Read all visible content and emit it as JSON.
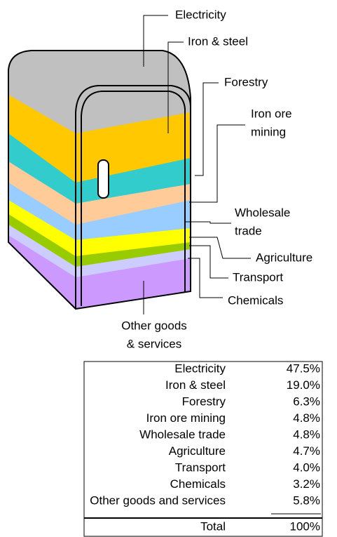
{
  "diagram": {
    "labels": [
      [
        "Electricity"
      ],
      [
        "Iron & steel"
      ],
      [
        "Forestry"
      ],
      [
        "Iron ore",
        "mining"
      ],
      [
        "Wholesale",
        "trade"
      ],
      [
        "Agriculture"
      ],
      [
        "Transport"
      ],
      [
        "Chemicals"
      ],
      [
        "Other goods",
        "& services"
      ]
    ]
  },
  "table": {
    "rows": [
      [
        "Electricity",
        "47.5%"
      ],
      [
        "Iron & steel",
        "19.0%"
      ],
      [
        "Forestry",
        "6.3%"
      ],
      [
        "Iron ore mining",
        "4.8%"
      ],
      [
        "Wholesale trade",
        "4.8%"
      ],
      [
        "Agriculture",
        "4.7%"
      ],
      [
        "Transport",
        "4.0%"
      ],
      [
        "Chemicals",
        "3.2%"
      ],
      [
        "Other goods and services",
        "5.8%"
      ]
    ],
    "total": [
      "Total",
      "100%"
    ]
  }
}
